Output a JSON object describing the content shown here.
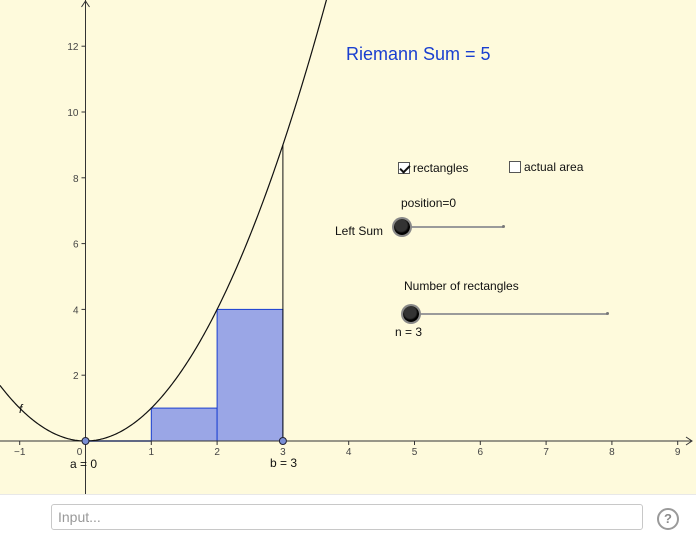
{
  "graphics": {
    "title": "Riemann Sum = 5",
    "checkbox_rectangles": {
      "label": "rectangles",
      "checked": true
    },
    "checkbox_actual_area": {
      "label": "actual area",
      "checked": false
    },
    "position_slider": {
      "label": "position=0",
      "value": 0
    },
    "left_sum_label": "Left Sum",
    "rectangles_slider": {
      "label": "Number of rectangles",
      "value": 3,
      "value_label": "n = 3"
    },
    "function_label": "f",
    "point_a_label": "a = 0",
    "point_b_label": "b = 3",
    "axes": {
      "x_ticks": [
        "−1",
        "0",
        "1",
        "2",
        "3",
        "4",
        "5",
        "6",
        "7",
        "8",
        "9"
      ],
      "y_ticks": [
        "2",
        "4",
        "6",
        "8",
        "10",
        "12"
      ]
    },
    "colors": {
      "background": "#fefadc",
      "rectangle_fill": "#9aa6e6",
      "rectangle_stroke": "#1a3fd0",
      "title": "#1a3fd0"
    }
  },
  "chart_data": {
    "type": "area",
    "function": "f(x) = x^2",
    "a": 0,
    "b": 3,
    "n": 3,
    "riemann_type": "left",
    "rectangles": [
      {
        "x0": 0,
        "x1": 1,
        "height": 0
      },
      {
        "x0": 1,
        "x1": 2,
        "height": 1
      },
      {
        "x0": 2,
        "x1": 3,
        "height": 4
      }
    ],
    "sum": 5,
    "xlim": [
      -1.3,
      9.2
    ],
    "ylim": [
      -1.6,
      13.4
    ]
  },
  "input_bar": {
    "placeholder": "Input..."
  },
  "help_icon": {
    "glyph": "?"
  }
}
